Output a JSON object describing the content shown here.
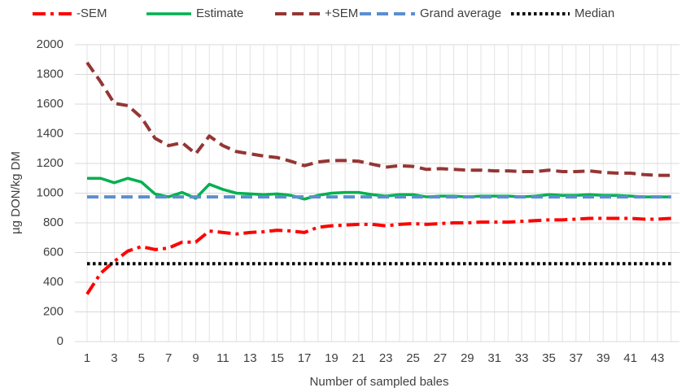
{
  "chart_data": {
    "type": "line",
    "x_label": "Number of sampled bales",
    "y_label": "µg DON/kg DM",
    "categories": [
      1,
      null,
      3,
      null,
      5,
      null,
      7,
      null,
      9,
      null,
      11,
      null,
      13,
      null,
      15,
      null,
      17,
      null,
      19,
      null,
      21,
      null,
      23,
      null,
      25,
      null,
      27,
      null,
      29,
      null,
      31,
      null,
      33,
      null,
      35,
      null,
      37,
      null,
      39,
      null,
      41,
      null,
      43,
      null
    ],
    "ylim": [
      0,
      2000
    ],
    "yticks": [
      0,
      200,
      400,
      600,
      800,
      1000,
      1200,
      1400,
      1600,
      1800,
      2000
    ],
    "grid": true,
    "legend": "top",
    "series": [
      {
        "name": "-SEM",
        "color": "#ff0000",
        "dash": "dash-dot",
        "values": [
          320,
          460,
          540,
          610,
          640,
          620,
          630,
          670,
          670,
          745,
          735,
          725,
          735,
          740,
          750,
          745,
          735,
          770,
          780,
          785,
          790,
          790,
          780,
          790,
          795,
          790,
          795,
          800,
          800,
          805,
          805,
          805,
          810,
          815,
          820,
          820,
          825,
          830,
          830,
          830,
          830,
          825,
          825,
          830
        ]
      },
      {
        "name": "Estimate",
        "color": "#00b050",
        "dash": "solid",
        "values": [
          1100,
          1100,
          1070,
          1100,
          1075,
          995,
          975,
          1005,
          965,
          1060,
          1025,
          1000,
          995,
          990,
          995,
          985,
          960,
          985,
          1000,
          1005,
          1005,
          990,
          980,
          990,
          990,
          975,
          980,
          980,
          975,
          980,
          980,
          980,
          975,
          980,
          990,
          985,
          985,
          990,
          985,
          985,
          980,
          975,
          975,
          975
        ]
      },
      {
        "name": "+SEM",
        "color": "#943634",
        "dash": "dashed",
        "values": [
          1880,
          1750,
          1605,
          1590,
          1510,
          1370,
          1320,
          1340,
          1265,
          1385,
          1320,
          1280,
          1265,
          1250,
          1240,
          1215,
          1185,
          1210,
          1220,
          1220,
          1215,
          1195,
          1175,
          1185,
          1180,
          1160,
          1165,
          1160,
          1155,
          1155,
          1150,
          1150,
          1145,
          1145,
          1155,
          1145,
          1145,
          1150,
          1140,
          1135,
          1135,
          1125,
          1120,
          1120
        ]
      },
      {
        "name": "Grand average",
        "color": "#5b8fd0",
        "dash": "dashed",
        "values": [
          975,
          975,
          975,
          975,
          975,
          975,
          975,
          975,
          975,
          975,
          975,
          975,
          975,
          975,
          975,
          975,
          975,
          975,
          975,
          975,
          975,
          975,
          975,
          975,
          975,
          975,
          975,
          975,
          975,
          975,
          975,
          975,
          975,
          975,
          975,
          975,
          975,
          975,
          975,
          975,
          975,
          975,
          975,
          975
        ]
      },
      {
        "name": "Median",
        "color": "#000000",
        "dash": "dotted",
        "values": [
          525,
          525,
          525,
          525,
          525,
          525,
          525,
          525,
          525,
          525,
          525,
          525,
          525,
          525,
          525,
          525,
          525,
          525,
          525,
          525,
          525,
          525,
          525,
          525,
          525,
          525,
          525,
          525,
          525,
          525,
          525,
          525,
          525,
          525,
          525,
          525,
          525,
          525,
          525,
          525,
          525,
          525,
          525,
          525
        ]
      }
    ]
  }
}
